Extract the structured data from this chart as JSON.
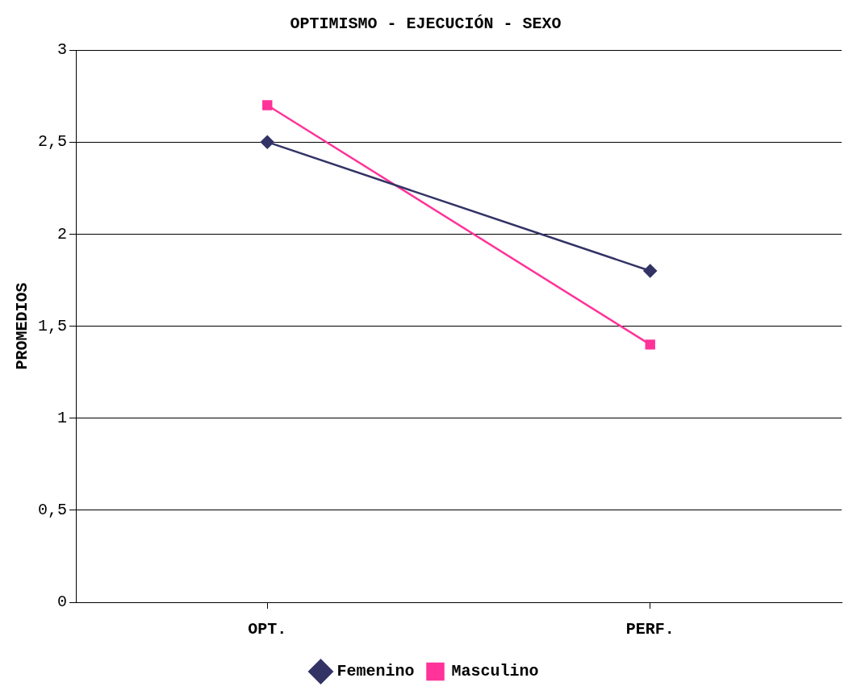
{
  "chart_data": {
    "type": "line",
    "title": "OPTIMISMO - EJECUCIÓN - SEXO",
    "ylabel": "PROMEDIOS",
    "categories": [
      "OPT.",
      "PERF."
    ],
    "series": [
      {
        "name": "Femenino",
        "color": "#333366",
        "marker": "diamond",
        "values": [
          2.5,
          1.8
        ]
      },
      {
        "name": "Masculino",
        "color": "#ff3399",
        "marker": "square",
        "values": [
          2.7,
          1.4
        ]
      }
    ],
    "ylim": [
      0,
      3
    ],
    "yticks": [
      0,
      {
        "value": 0.5,
        "label": "0,5"
      },
      1,
      {
        "value": 1.5,
        "label": "1,5"
      },
      2,
      {
        "value": 2.5,
        "label": "2,5"
      },
      3
    ],
    "grid": "y",
    "legend": "bottom"
  }
}
